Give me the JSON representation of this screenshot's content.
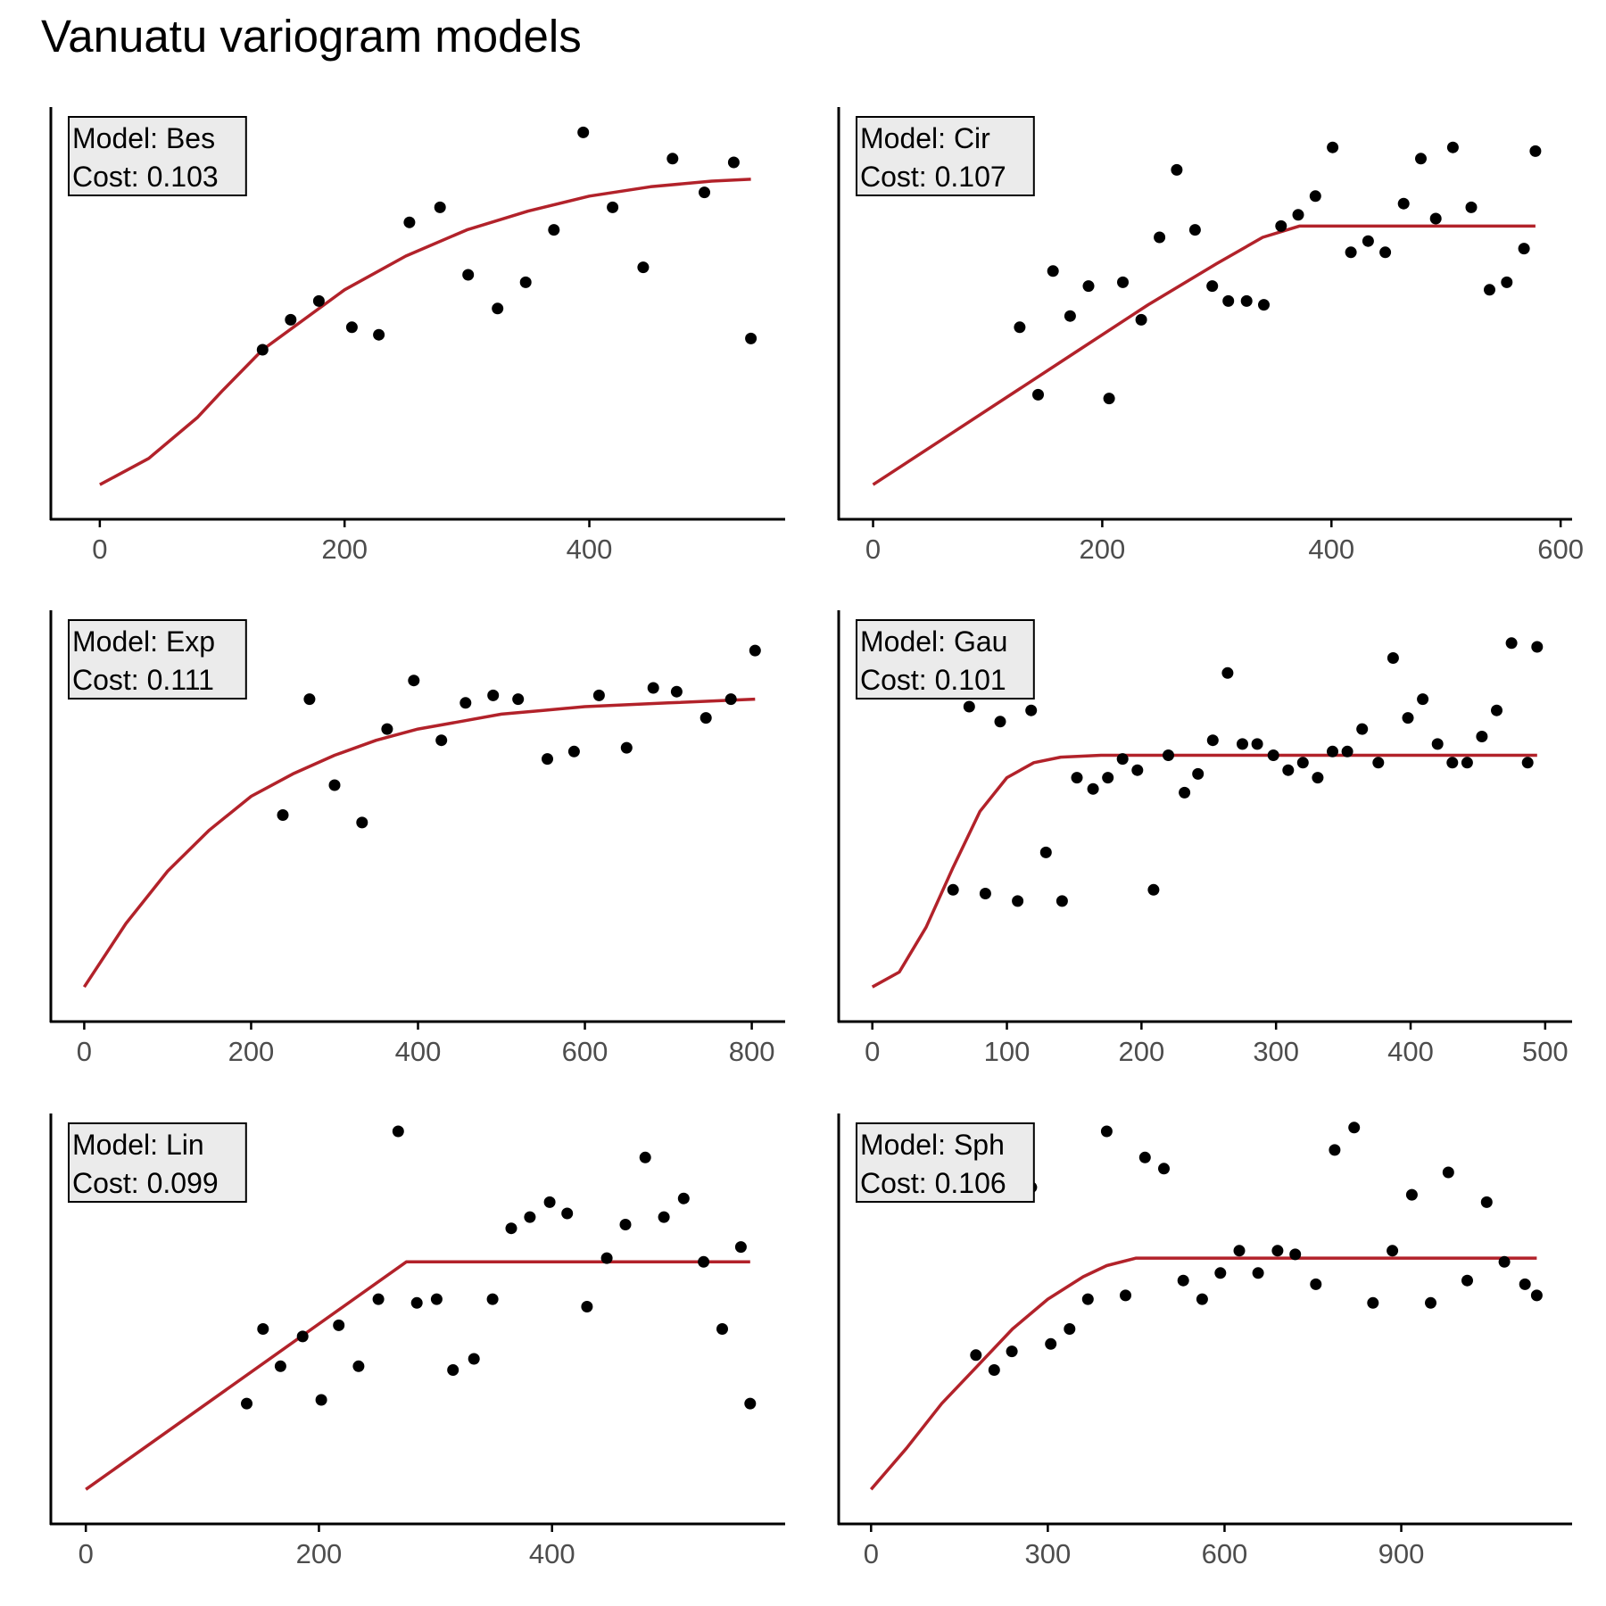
{
  "title": "Vanuatu variogram models",
  "colors": {
    "model_line": "#B2222A",
    "points": "#000000",
    "label_box_fill": "#EBEBEB",
    "axis": "#000000",
    "tick_text": "#4d4d4d"
  },
  "chart_data": [
    {
      "type": "scatter",
      "title": "",
      "box": [
        "Model: Bes",
        "Cost: 0.103"
      ],
      "xlabel": "",
      "ylabel": "",
      "xlim": [
        -40,
        560
      ],
      "ylim": [
        0,
        1
      ],
      "xticks": [
        0,
        200,
        400
      ],
      "grid": false,
      "model_line": [
        [
          0,
          0.04
        ],
        [
          40,
          0.11
        ],
        [
          80,
          0.22
        ],
        [
          100,
          0.29
        ],
        [
          133,
          0.4
        ],
        [
          200,
          0.56
        ],
        [
          250,
          0.65
        ],
        [
          300,
          0.72
        ],
        [
          350,
          0.77
        ],
        [
          400,
          0.81
        ],
        [
          450,
          0.835
        ],
        [
          500,
          0.85
        ],
        [
          532,
          0.855
        ]
      ],
      "points": [
        [
          133,
          0.4
        ],
        [
          156,
          0.48
        ],
        [
          179,
          0.53
        ],
        [
          206,
          0.46
        ],
        [
          228,
          0.44
        ],
        [
          253,
          0.74
        ],
        [
          278,
          0.78
        ],
        [
          301,
          0.6
        ],
        [
          325,
          0.51
        ],
        [
          348,
          0.58
        ],
        [
          371,
          0.72
        ],
        [
          395,
          0.98
        ],
        [
          419,
          0.78
        ],
        [
          444,
          0.62
        ],
        [
          468,
          0.91
        ],
        [
          494,
          0.82
        ],
        [
          518,
          0.9
        ],
        [
          532,
          0.43
        ]
      ]
    },
    {
      "type": "scatter",
      "title": "",
      "box": [
        "Model: Cir",
        "Cost: 0.107"
      ],
      "xlabel": "",
      "ylabel": "",
      "xlim": [
        -30,
        610
      ],
      "ylim": [
        0,
        1
      ],
      "xticks": [
        0,
        200,
        400,
        600
      ],
      "grid": false,
      "model_line": [
        [
          0,
          0.04
        ],
        [
          60,
          0.16
        ],
        [
          120,
          0.28
        ],
        [
          180,
          0.4
        ],
        [
          240,
          0.52
        ],
        [
          300,
          0.63
        ],
        [
          340,
          0.7
        ],
        [
          372,
          0.73
        ],
        [
          578,
          0.73
        ]
      ],
      "points": [
        [
          128,
          0.46
        ],
        [
          144,
          0.28
        ],
        [
          157,
          0.61
        ],
        [
          172,
          0.49
        ],
        [
          188,
          0.57
        ],
        [
          206,
          0.27
        ],
        [
          218,
          0.58
        ],
        [
          234,
          0.48
        ],
        [
          250,
          0.7
        ],
        [
          265,
          0.88
        ],
        [
          281,
          0.72
        ],
        [
          296,
          0.57
        ],
        [
          310,
          0.53
        ],
        [
          326,
          0.53
        ],
        [
          341,
          0.52
        ],
        [
          356,
          0.73
        ],
        [
          371,
          0.76
        ],
        [
          386,
          0.81
        ],
        [
          401,
          0.94
        ],
        [
          417,
          0.66
        ],
        [
          432,
          0.69
        ],
        [
          447,
          0.66
        ],
        [
          463,
          0.79
        ],
        [
          478,
          0.91
        ],
        [
          491,
          0.75
        ],
        [
          506,
          0.94
        ],
        [
          522,
          0.78
        ],
        [
          538,
          0.56
        ],
        [
          553,
          0.58
        ],
        [
          568,
          0.67
        ],
        [
          578,
          0.93
        ]
      ]
    },
    {
      "type": "scatter",
      "title": "",
      "box": [
        "Model: Exp",
        "Cost: 0.111"
      ],
      "xlabel": "",
      "ylabel": "",
      "xlim": [
        -40,
        840
      ],
      "ylim": [
        0,
        1
      ],
      "xticks": [
        0,
        200,
        400,
        600,
        800
      ],
      "grid": false,
      "model_line": [
        [
          0,
          0.04
        ],
        [
          50,
          0.21
        ],
        [
          100,
          0.35
        ],
        [
          150,
          0.46
        ],
        [
          200,
          0.55
        ],
        [
          250,
          0.61
        ],
        [
          300,
          0.66
        ],
        [
          350,
          0.7
        ],
        [
          400,
          0.73
        ],
        [
          450,
          0.75
        ],
        [
          500,
          0.77
        ],
        [
          550,
          0.78
        ],
        [
          600,
          0.79
        ],
        [
          700,
          0.8
        ],
        [
          804,
          0.81
        ]
      ],
      "points": [
        [
          238,
          0.5
        ],
        [
          270,
          0.81
        ],
        [
          300,
          0.58
        ],
        [
          333,
          0.48
        ],
        [
          363,
          0.73
        ],
        [
          395,
          0.86
        ],
        [
          428,
          0.7
        ],
        [
          457,
          0.8
        ],
        [
          490,
          0.82
        ],
        [
          520,
          0.81
        ],
        [
          555,
          0.65
        ],
        [
          587,
          0.67
        ],
        [
          617,
          0.82
        ],
        [
          650,
          0.68
        ],
        [
          682,
          0.84
        ],
        [
          710,
          0.83
        ],
        [
          745,
          0.76
        ],
        [
          775,
          0.81
        ],
        [
          804,
          0.94
        ]
      ]
    },
    {
      "type": "scatter",
      "title": "",
      "box": [
        "Model: Gau",
        "Cost: 0.101"
      ],
      "xlabel": "",
      "ylabel": "",
      "xlim": [
        -25,
        520
      ],
      "ylim": [
        0,
        1
      ],
      "xticks": [
        0,
        100,
        200,
        300,
        400,
        500
      ],
      "grid": false,
      "model_line": [
        [
          0,
          0.04
        ],
        [
          20,
          0.08
        ],
        [
          40,
          0.2
        ],
        [
          60,
          0.36
        ],
        [
          80,
          0.51
        ],
        [
          100,
          0.6
        ],
        [
          120,
          0.64
        ],
        [
          140,
          0.655
        ],
        [
          170,
          0.66
        ],
        [
          200,
          0.66
        ],
        [
          300,
          0.66
        ],
        [
          494,
          0.66
        ]
      ],
      "points": [
        [
          60,
          0.3
        ],
        [
          72,
          0.79
        ],
        [
          84,
          0.29
        ],
        [
          95,
          0.75
        ],
        [
          108,
          0.27
        ],
        [
          118,
          0.78
        ],
        [
          129,
          0.4
        ],
        [
          141,
          0.27
        ],
        [
          152,
          0.6
        ],
        [
          164,
          0.57
        ],
        [
          175,
          0.6
        ],
        [
          186,
          0.65
        ],
        [
          197,
          0.62
        ],
        [
          209,
          0.3
        ],
        [
          220,
          0.66
        ],
        [
          232,
          0.56
        ],
        [
          242,
          0.61
        ],
        [
          253,
          0.7
        ],
        [
          264,
          0.88
        ],
        [
          275,
          0.69
        ],
        [
          286,
          0.69
        ],
        [
          298,
          0.66
        ],
        [
          309,
          0.62
        ],
        [
          320,
          0.64
        ],
        [
          331,
          0.6
        ],
        [
          342,
          0.67
        ],
        [
          353,
          0.67
        ],
        [
          364,
          0.73
        ],
        [
          376,
          0.64
        ],
        [
          387,
          0.92
        ],
        [
          398,
          0.76
        ],
        [
          409,
          0.81
        ],
        [
          420,
          0.69
        ],
        [
          431,
          0.64
        ],
        [
          442,
          0.64
        ],
        [
          453,
          0.71
        ],
        [
          464,
          0.78
        ],
        [
          475,
          0.96
        ],
        [
          487,
          0.64
        ],
        [
          494,
          0.95
        ]
      ]
    },
    {
      "type": "scatter",
      "title": "",
      "box": [
        "Model: Lin",
        "Cost: 0.099"
      ],
      "xlabel": "",
      "ylabel": "",
      "xlim": [
        -30,
        600
      ],
      "ylim": [
        0,
        1
      ],
      "xticks": [
        0,
        200,
        400
      ],
      "grid": false,
      "model_line": [
        [
          0,
          0.04
        ],
        [
          275,
          0.65
        ],
        [
          570,
          0.65
        ]
      ],
      "points": [
        [
          138,
          0.27
        ],
        [
          152,
          0.47
        ],
        [
          167,
          0.37
        ],
        [
          186,
          0.45
        ],
        [
          202,
          0.28
        ],
        [
          217,
          0.48
        ],
        [
          234,
          0.37
        ],
        [
          251,
          0.55
        ],
        [
          268,
          1.0
        ],
        [
          284,
          0.54
        ],
        [
          301,
          0.55
        ],
        [
          315,
          0.36
        ],
        [
          333,
          0.39
        ],
        [
          349,
          0.55
        ],
        [
          365,
          0.74
        ],
        [
          381,
          0.77
        ],
        [
          398,
          0.81
        ],
        [
          413,
          0.78
        ],
        [
          430,
          0.53
        ],
        [
          447,
          0.66
        ],
        [
          463,
          0.75
        ],
        [
          480,
          0.93
        ],
        [
          496,
          0.77
        ],
        [
          513,
          0.82
        ],
        [
          530,
          0.65
        ],
        [
          546,
          0.47
        ],
        [
          562,
          0.69
        ],
        [
          570,
          0.27
        ]
      ]
    },
    {
      "type": "scatter",
      "title": "",
      "box": [
        "Model: Sph",
        "Cost: 0.106"
      ],
      "xlabel": "",
      "ylabel": "",
      "xlim": [
        -55,
        1190
      ],
      "ylim": [
        0,
        1
      ],
      "xticks": [
        0,
        300,
        600,
        900
      ],
      "grid": false,
      "model_line": [
        [
          0,
          0.04
        ],
        [
          60,
          0.15
        ],
        [
          120,
          0.27
        ],
        [
          180,
          0.37
        ],
        [
          240,
          0.47
        ],
        [
          300,
          0.55
        ],
        [
          360,
          0.61
        ],
        [
          400,
          0.64
        ],
        [
          450,
          0.66
        ],
        [
          1130,
          0.66
        ]
      ],
      "points": [
        [
          178,
          0.4
        ],
        [
          209,
          0.36
        ],
        [
          239,
          0.41
        ],
        [
          272,
          0.85
        ],
        [
          305,
          0.43
        ],
        [
          337,
          0.47
        ],
        [
          368,
          0.55
        ],
        [
          400,
          1.0
        ],
        [
          432,
          0.56
        ],
        [
          465,
          0.93
        ],
        [
          497,
          0.9
        ],
        [
          530,
          0.6
        ],
        [
          562,
          0.55
        ],
        [
          593,
          0.62
        ],
        [
          625,
          0.68
        ],
        [
          657,
          0.62
        ],
        [
          690,
          0.68
        ],
        [
          720,
          0.67
        ],
        [
          755,
          0.59
        ],
        [
          787,
          0.95
        ],
        [
          820,
          1.01
        ],
        [
          852,
          0.54
        ],
        [
          885,
          0.68
        ],
        [
          918,
          0.83
        ],
        [
          950,
          0.54
        ],
        [
          980,
          0.89
        ],
        [
          1012,
          0.6
        ],
        [
          1045,
          0.81
        ],
        [
          1075,
          0.65
        ],
        [
          1110,
          0.59
        ],
        [
          1130,
          0.56
        ]
      ]
    }
  ]
}
